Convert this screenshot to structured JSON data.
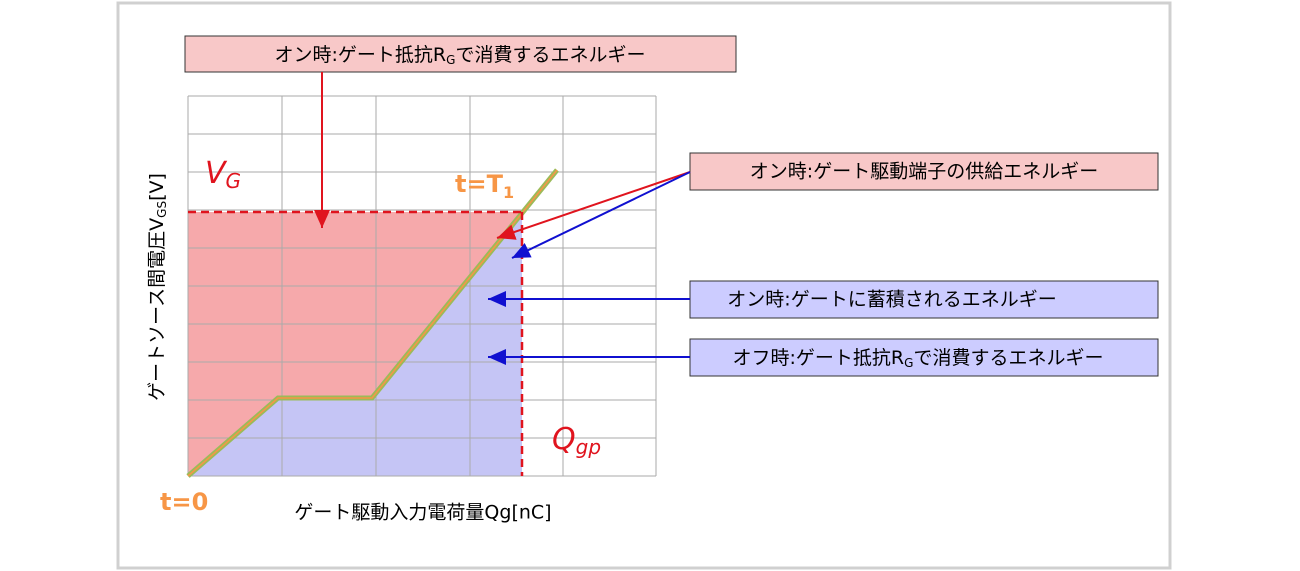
{
  "labels": {
    "top_box": {
      "text": "オン時:ゲート抵抗R",
      "sub": "G",
      "after": "で消費するエネルギー"
    },
    "supply_box": {
      "text": "オン時:ゲート駆動端子の供給エネルギー"
    },
    "stored_box": {
      "text": "オン時:ゲートに蓄積されるエネルギー"
    },
    "off_box": {
      "text": "オフ時:ゲート抵抗R",
      "sub": "G",
      "after": "で消費するエネルギー"
    },
    "y_axis": {
      "text": "ゲートソース間電圧V",
      "sub": "GS",
      "after": "[V]"
    },
    "x_axis": {
      "text": "ゲート駆動入力電荷量Qg[nC]"
    },
    "vg": {
      "text": "V",
      "sub": "G"
    },
    "qgp": {
      "text": "Q",
      "sub": "gp"
    },
    "t1": {
      "text": "t=T",
      "sub": "1"
    },
    "t0": {
      "text": "t=0"
    }
  }
}
